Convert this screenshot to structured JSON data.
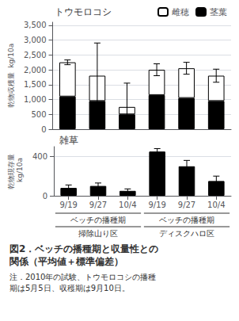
{
  "chart_data": [
    {
      "type": "bar",
      "title": "トウモロコシ",
      "ylabel": "乾物収穫量  kg/10a",
      "categories": [
        "9/19",
        "9/27",
        "10/4",
        "9/19",
        "9/27",
        "10/4"
      ],
      "series": [
        {
          "name": "茎葉",
          "color": "#000000",
          "values": [
            1100,
            950,
            500,
            1150,
            1050,
            950
          ]
        },
        {
          "name": "雌穂",
          "color": "#ffffff",
          "values": [
            1150,
            850,
            250,
            850,
            1000,
            850
          ]
        }
      ],
      "stacked": true,
      "errors": [
        80,
        1100,
        800,
        200,
        200,
        220
      ],
      "ylim": [
        0,
        3600
      ],
      "yticks": [
        0,
        500,
        1000,
        1500,
        2000,
        2500,
        3000,
        3500
      ],
      "grid": true,
      "legend": "upper right",
      "tick_labels": "y"
    },
    {
      "type": "bar",
      "title": "雑草",
      "ylabel": "乾物現存量\n kg/10a",
      "categories": [
        "9/19",
        "9/27",
        "10/4",
        "9/19",
        "9/27",
        "10/4"
      ],
      "values": [
        80,
        100,
        50,
        450,
        300,
        150
      ],
      "color": "#000000",
      "errors": [
        30,
        30,
        20,
        30,
        60,
        50
      ],
      "ylim": [
        0,
        500
      ],
      "yticks": [
        0,
        400
      ],
      "grid": true,
      "x_groups": [
        [
          "ベッチの播種期",
          "掃除山り区"
        ],
        [
          "ベッチの播種期",
          "ディスクハロ区"
        ]
      ],
      "caption": [
        "図2．ベッチの播種期と収量性との",
        "関係（平均値＋標準偏差）",
        "注．2010年の試験、トウモロコシの播種",
        "期は5月5日、収穫期は9月10日。"
      ]
    }
  ]
}
